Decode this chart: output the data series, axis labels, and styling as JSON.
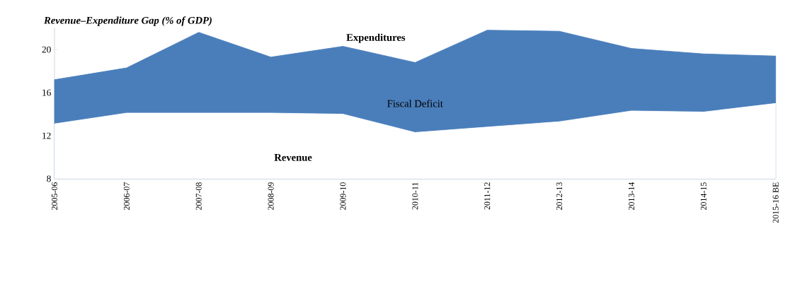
{
  "chart_data": {
    "type": "area",
    "title": "*Revenue–Expenditure Gap (% of GDP)*",
    "categories": [
      "2005-06",
      "2006-07",
      "2007-08",
      "2008-09",
      "2009-10",
      "2010-11",
      "2011-12",
      "2012-13",
      "2013-14",
      "2014-15",
      "2015-16 BE"
    ],
    "series": [
      {
        "name": "Expenditures",
        "color": "#4a7ebb",
        "values": [
          17.2,
          18.3,
          21.6,
          19.3,
          20.3,
          18.8,
          21.8,
          21.7,
          20.1,
          19.6,
          19.4
        ]
      },
      {
        "name": "Revenue",
        "color": "#ffffff",
        "values": [
          13.1,
          14.1,
          14.1,
          14.1,
          14.0,
          12.3,
          12.8,
          13.3,
          14.3,
          14.2,
          15.0
        ]
      }
    ],
    "annotations": [
      "Fiscal Deficit"
    ],
    "ylim": [
      8,
      22
    ],
    "yticks": [
      8,
      12,
      16,
      20
    ],
    "grid": false,
    "legend": false
  }
}
